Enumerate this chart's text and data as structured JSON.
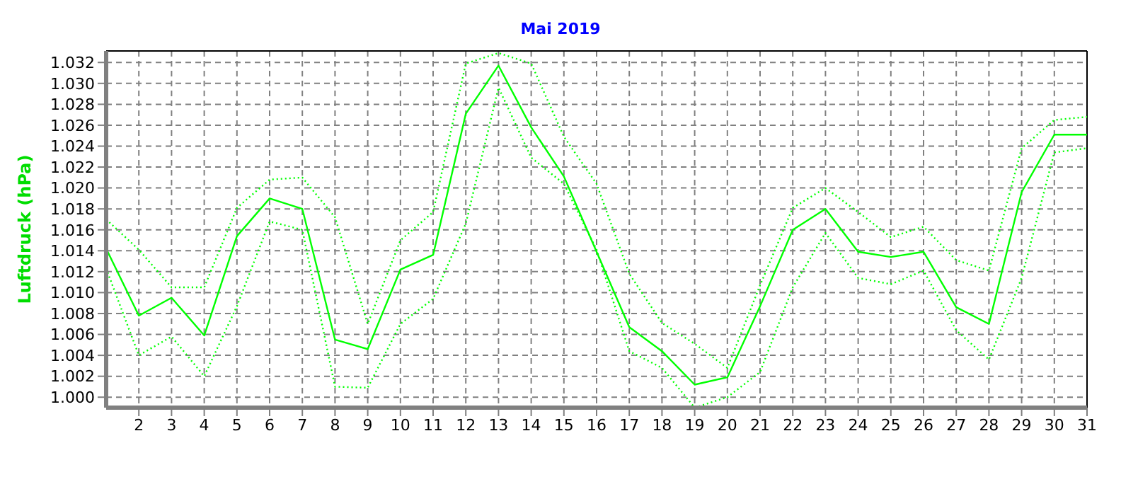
{
  "chart_data": {
    "type": "line",
    "title": "Mai 2019",
    "ylabel": "Luftdruck (hPa)",
    "x": [
      1,
      2,
      3,
      4,
      5,
      6,
      7,
      8,
      9,
      10,
      11,
      12,
      13,
      14,
      15,
      16,
      17,
      18,
      19,
      20,
      21,
      22,
      23,
      24,
      25,
      26,
      27,
      28,
      29,
      30,
      31
    ],
    "series": [
      {
        "color": "#00ff00",
        "line_style": "dotted",
        "values": [
          1.017,
          1.0141,
          1.0105,
          1.0105,
          1.0181,
          1.0208,
          1.021,
          1.0172,
          1.007,
          1.015,
          1.0177,
          1.0319,
          1.0329,
          1.0319,
          1.0249,
          1.0204,
          1.0118,
          1.0071,
          1.0051,
          1.0028,
          1.0107,
          1.0181,
          1.02,
          1.0177,
          1.0153,
          1.0163,
          1.0131,
          1.0121,
          1.0238,
          1.0265,
          1.0268
        ]
      },
      {
        "color": "#00ff00",
        "line_style": "solid",
        "values": [
          1.0142,
          1.0078,
          1.0095,
          1.0059,
          1.0154,
          1.019,
          1.018,
          1.0055,
          1.0046,
          1.0122,
          1.0136,
          1.0271,
          1.0317,
          1.0258,
          1.0211,
          1.0139,
          1.0067,
          1.0044,
          1.0012,
          1.0019,
          1.0087,
          1.016,
          1.018,
          1.0139,
          1.0134,
          1.0139,
          1.0086,
          1.007,
          1.0196,
          1.0251,
          1.0251
        ]
      },
      {
        "color": "#00ff00",
        "line_style": "dotted",
        "values": [
          1.0123,
          1.004,
          1.0058,
          1.002,
          1.0087,
          1.0168,
          1.016,
          1.001,
          1.0009,
          1.007,
          1.0094,
          1.0166,
          1.0296,
          1.0229,
          1.0204,
          1.0141,
          1.0044,
          1.0028,
          0.999,
          1.0,
          1.0024,
          1.0105,
          1.0157,
          1.0114,
          1.0108,
          1.0121,
          1.0064,
          1.0036,
          1.0114,
          1.0234,
          1.0238
        ]
      }
    ],
    "xlim": [
      1,
      31
    ],
    "xticks": [
      2,
      3,
      4,
      5,
      6,
      7,
      8,
      9,
      10,
      11,
      12,
      13,
      14,
      15,
      16,
      17,
      18,
      19,
      20,
      21,
      22,
      23,
      24,
      25,
      26,
      27,
      28,
      29,
      30,
      31
    ],
    "ylim": [
      0.999,
      1.0331
    ],
    "yticks": [
      {
        "value": 1.0,
        "label": "1.000"
      },
      1.002,
      1.004,
      1.006,
      1.008,
      {
        "value": 1.01,
        "label": "1.010"
      },
      1.012,
      1.014,
      1.016,
      1.018,
      {
        "value": 1.02,
        "label": "1.020"
      },
      1.022,
      1.024,
      1.026,
      1.028,
      {
        "value": 1.03,
        "label": "1.030"
      },
      1.032
    ],
    "grid": true,
    "marker": "none"
  }
}
